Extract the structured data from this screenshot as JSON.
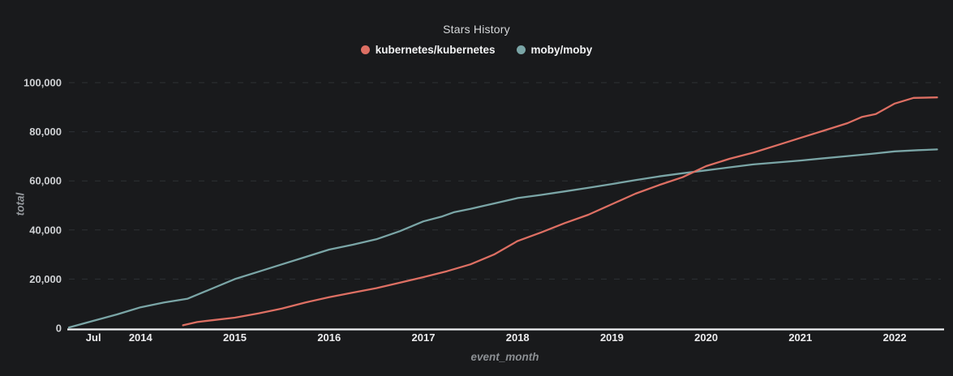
{
  "title": "Stars History",
  "axes": {
    "x_label": "event_month",
    "y_label": "total"
  },
  "chart_data": {
    "type": "line",
    "title": "Stars History",
    "xlabel": "event_month",
    "ylabel": "total",
    "x_range": [
      2013.24,
      2022.49
    ],
    "y_range": [
      0,
      100000
    ],
    "ylim": [
      0,
      100000
    ],
    "grid": "horizontal-dashed",
    "legend_position": "top-center",
    "x_ticks": [
      {
        "value": 2013.5,
        "label": "Jul"
      },
      {
        "value": 2014,
        "label": "2014"
      },
      {
        "value": 2015,
        "label": "2015"
      },
      {
        "value": 2016,
        "label": "2016"
      },
      {
        "value": 2017,
        "label": "2017"
      },
      {
        "value": 2018,
        "label": "2018"
      },
      {
        "value": 2019,
        "label": "2019"
      },
      {
        "value": 2020,
        "label": "2020"
      },
      {
        "value": 2021,
        "label": "2021"
      },
      {
        "value": 2022,
        "label": "2022"
      }
    ],
    "y_ticks": [
      {
        "value": 0,
        "label": "0"
      },
      {
        "value": 20000,
        "label": "20,000"
      },
      {
        "value": 40000,
        "label": "40,000"
      },
      {
        "value": 60000,
        "label": "60,000"
      },
      {
        "value": 80000,
        "label": "80,000"
      },
      {
        "value": 100000,
        "label": "100,000"
      }
    ],
    "series": [
      {
        "name": "kubernetes/kubernetes",
        "color": "#dd6f63",
        "x": [
          2014.45,
          2014.6,
          2014.75,
          2015.0,
          2015.25,
          2015.5,
          2015.75,
          2016.0,
          2016.25,
          2016.5,
          2016.75,
          2017.0,
          2017.25,
          2017.5,
          2017.75,
          2018.0,
          2018.25,
          2018.5,
          2018.75,
          2019.0,
          2019.25,
          2019.5,
          2019.75,
          2020.0,
          2020.25,
          2020.5,
          2020.75,
          2021.0,
          2021.25,
          2021.5,
          2021.65,
          2021.8,
          2022.0,
          2022.2,
          2022.45
        ],
        "y": [
          1200,
          2500,
          3200,
          4300,
          6000,
          8000,
          10500,
          12600,
          14500,
          16300,
          18500,
          20800,
          23200,
          26000,
          30000,
          35500,
          39000,
          42800,
          46200,
          50500,
          54800,
          58300,
          61500,
          66000,
          69000,
          71500,
          74500,
          77500,
          80500,
          83500,
          86000,
          87200,
          91500,
          93800,
          94000
        ]
      },
      {
        "name": "moby/moby",
        "color": "#7aa5a6",
        "x": [
          2013.24,
          2013.5,
          2013.75,
          2014.0,
          2014.25,
          2014.5,
          2014.75,
          2015.0,
          2015.25,
          2015.5,
          2015.75,
          2016.0,
          2016.25,
          2016.5,
          2016.75,
          2017.0,
          2017.2,
          2017.33,
          2017.5,
          2017.75,
          2018.0,
          2018.25,
          2018.5,
          2018.75,
          2019.0,
          2019.25,
          2019.5,
          2019.75,
          2020.0,
          2020.25,
          2020.5,
          2020.75,
          2021.0,
          2021.25,
          2021.5,
          2021.75,
          2022.0,
          2022.25,
          2022.45
        ],
        "y": [
          300,
          3000,
          5600,
          8500,
          10500,
          12000,
          16000,
          20000,
          23000,
          26000,
          29000,
          32000,
          34000,
          36200,
          39500,
          43500,
          45500,
          47300,
          48600,
          50800,
          53000,
          54300,
          55700,
          57200,
          58700,
          60300,
          61800,
          63100,
          64300,
          65500,
          66700,
          67500,
          68300,
          69200,
          70100,
          71000,
          72000,
          72500,
          72800
        ]
      }
    ]
  }
}
